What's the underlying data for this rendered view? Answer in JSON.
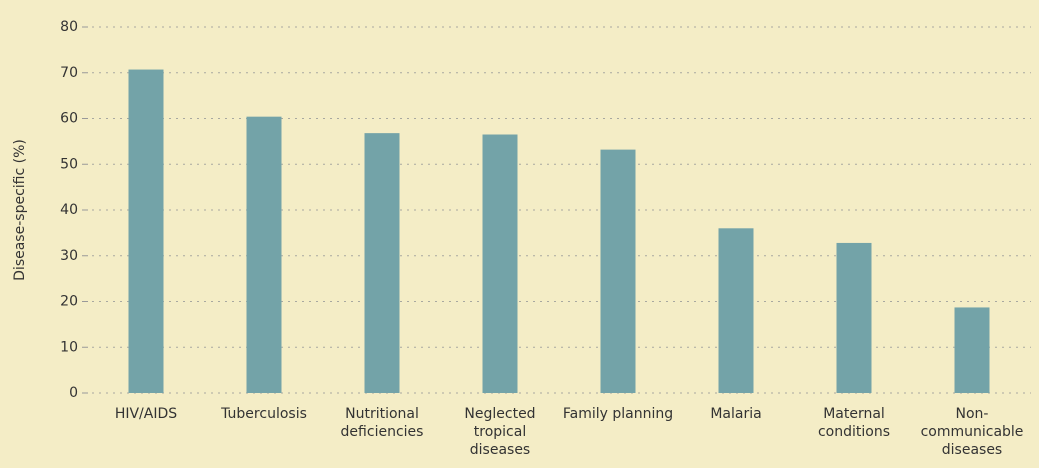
{
  "chart_data": {
    "type": "bar",
    "y_label": "Disease-specific (%)",
    "categories": [
      "HIV/AIDS",
      "Tuberculosis",
      "Nutritional deficiencies",
      "Neglected tropical diseases",
      "Family planning",
      "Malaria",
      "Maternal conditions",
      "Non-communicable diseases"
    ],
    "values": [
      70.7,
      60.4,
      56.8,
      56.5,
      53.2,
      36.0,
      32.8,
      18.7
    ],
    "color": "#73a3a8",
    "ylim": [
      0,
      80
    ],
    "yticks": [
      0,
      10,
      20,
      30,
      40,
      50,
      60,
      70,
      80
    ],
    "grid": true
  }
}
